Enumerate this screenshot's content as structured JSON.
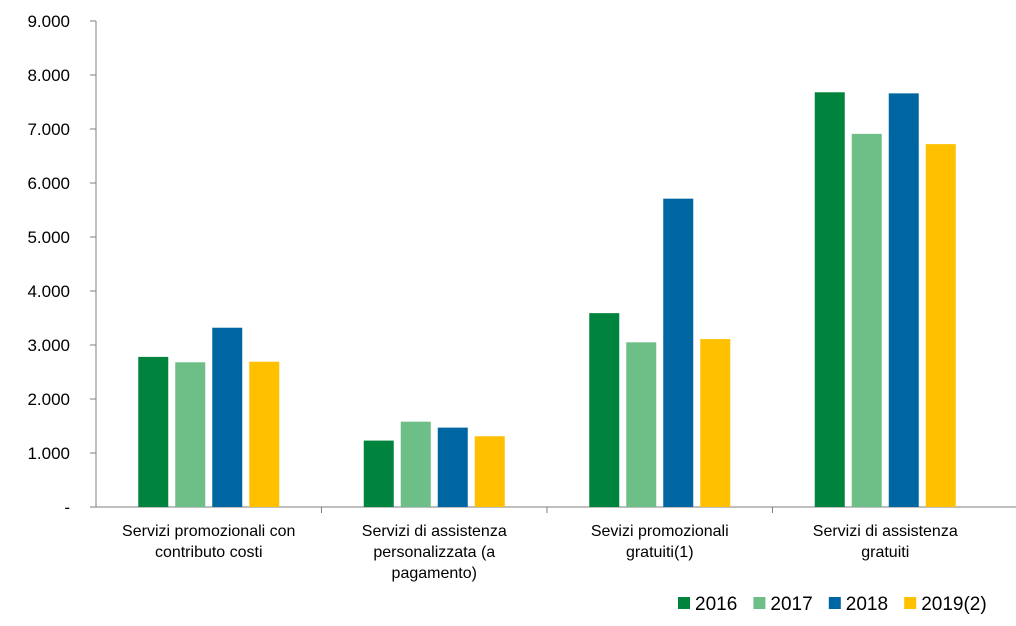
{
  "chart_data": {
    "type": "bar",
    "categories": [
      [
        "Servizi promozionali con",
        "contributo costi"
      ],
      [
        "Servizi di assistenza",
        "personalizzata (a",
        "pagamento)"
      ],
      [
        "Sevizi promozionali",
        "gratuiti(1)"
      ],
      [
        "Servizi di assistenza",
        "gratuiti"
      ]
    ],
    "series": [
      {
        "name": "2016",
        "color": "#00843D",
        "values": [
          2780,
          1230,
          3590,
          7680
        ]
      },
      {
        "name": "2017",
        "color": "#6DBE87",
        "values": [
          2680,
          1580,
          3050,
          6910
        ]
      },
      {
        "name": "2018",
        "color": "#0066A1",
        "values": [
          3320,
          1470,
          5710,
          7660
        ]
      },
      {
        "name": "2019(2)",
        "color": "#FFC000",
        "values": [
          2690,
          1310,
          3110,
          6720
        ]
      }
    ],
    "y_ticks": [
      "-",
      "1.000",
      "2.000",
      "3.000",
      "4.000",
      "5.000",
      "6.000",
      "7.000",
      "8.000",
      "9.000"
    ],
    "ylim": [
      0,
      9000
    ],
    "grid": false,
    "legend_position": "bottom-right"
  }
}
